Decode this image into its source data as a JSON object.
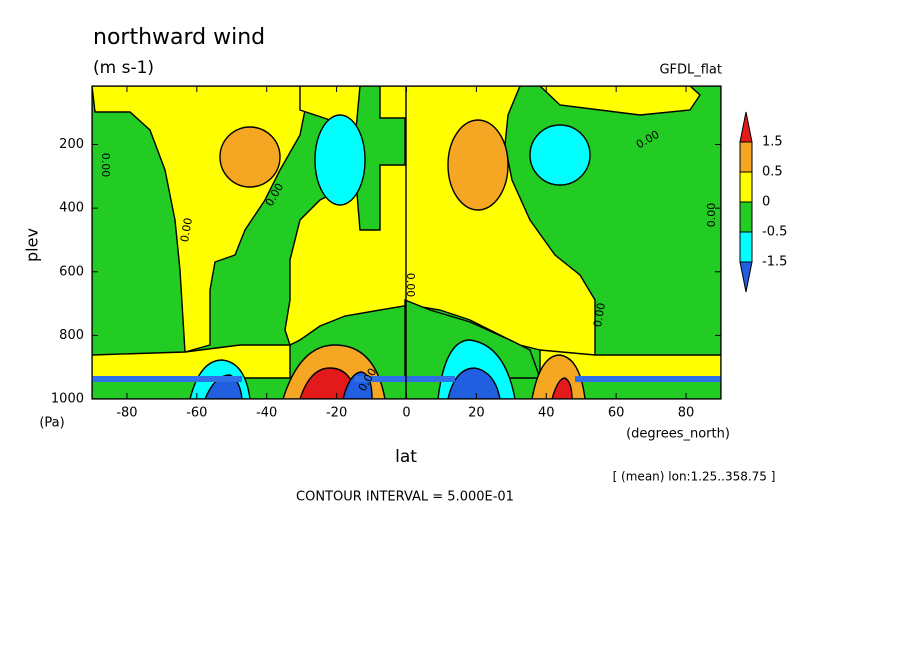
{
  "chart_data": {
    "type": "contour",
    "title": "northward wind",
    "subtitle": "(m s-1)",
    "dataset": "GFDL_flat",
    "x_label": "lat",
    "x_units": "(degrees_north)",
    "y_label": "plev",
    "y_units": "(Pa)",
    "note": "[ (mean) lon:1.25..358.75 ]",
    "footer": "CONTOUR INTERVAL = 5.000E-01",
    "xlim": [
      -90,
      90
    ],
    "xticks": [
      -80,
      -60,
      -40,
      -20,
      0,
      20,
      40,
      60,
      80
    ],
    "ylim": [
      16,
      1000
    ],
    "y_inverted": true,
    "yticks": [
      200,
      400,
      600,
      800,
      1000
    ],
    "levels": [
      -1.5,
      -0.5,
      0,
      0.5,
      1.5
    ],
    "colors": [
      "#1f5fe0",
      "#00ffff",
      "#22cc22",
      "#ffff00",
      "#f5a623",
      "#e31a1c"
    ],
    "contour_labels": [
      "0.00",
      "0.00",
      "0.00",
      "0.00",
      "0.00",
      "0.00",
      "0.00",
      "0.00"
    ]
  }
}
